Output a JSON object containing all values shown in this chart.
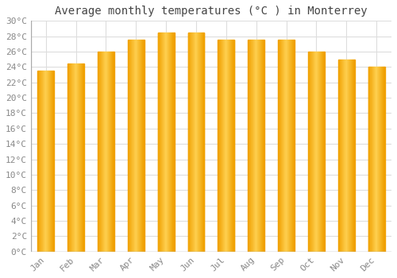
{
  "months": [
    "Jan",
    "Feb",
    "Mar",
    "Apr",
    "May",
    "Jun",
    "Jul",
    "Aug",
    "Sep",
    "Oct",
    "Nov",
    "Dec"
  ],
  "temperatures": [
    23.5,
    24.5,
    26.0,
    27.5,
    28.5,
    28.5,
    27.5,
    27.5,
    27.5,
    26.0,
    25.0,
    24.0
  ],
  "bar_color_center": "#FFD050",
  "bar_color_edge": "#F0A000",
  "title": "Average monthly temperatures (°C ) in Monterrey",
  "ylim": [
    0,
    30
  ],
  "ytick_step": 2,
  "background_color": "#ffffff",
  "grid_color": "#dddddd",
  "title_fontsize": 10,
  "tick_fontsize": 8,
  "font_family": "monospace"
}
